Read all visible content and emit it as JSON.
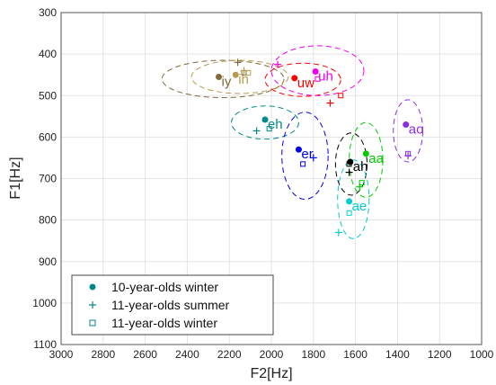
{
  "chart_data": {
    "type": "scatter",
    "xlabel": "F2[Hz]",
    "ylabel": "F1[Hz]",
    "xlim": [
      3000,
      1000
    ],
    "ylim": [
      1100,
      300
    ],
    "x_reversed": true,
    "y_reversed": true,
    "grid": true,
    "xticks": [
      "3000",
      "2800",
      "2600",
      "2400",
      "2200",
      "2000",
      "1800",
      "1600",
      "1400",
      "1200",
      "1000"
    ],
    "yticks": [
      "300",
      "400",
      "500",
      "600",
      "700",
      "800",
      "900",
      "1000",
      "1100"
    ],
    "legend": {
      "placement": "bottom-left",
      "entries": [
        {
          "marker": "circle",
          "label": "10-year-olds winter",
          "color": "#00868b"
        },
        {
          "marker": "plus",
          "label": "11-year-olds summer",
          "color": "#00868b"
        },
        {
          "marker": "square",
          "label": "11-year-olds winter",
          "color": "#00868b"
        }
      ]
    },
    "vowels": [
      {
        "label": "iy",
        "color": "#7f6a3a",
        "winter10": [
          2250,
          455
        ],
        "summer11": [
          2160,
          420
        ],
        "winter11": [
          2130,
          445
        ],
        "ellipse": {
          "cx": 2230,
          "cy": 460,
          "rx": 290,
          "ry": 45
        }
      },
      {
        "label": "ih",
        "color": "#b89a4e",
        "winter10": [
          2170,
          450
        ],
        "summer11": [
          2130,
          440
        ],
        "winter11": [
          2110,
          445
        ],
        "ellipse": {
          "cx": 2150,
          "cy": 455,
          "rx": 230,
          "ry": 40
        }
      },
      {
        "label": "uw",
        "color": "#ff0000",
        "winter10": [
          1890,
          458
        ],
        "summer11": [
          1720,
          518
        ],
        "winter11": [
          1670,
          500
        ],
        "ellipse": {
          "cx": 1850,
          "cy": 462,
          "rx": 180,
          "ry": 40
        }
      },
      {
        "label": "uh",
        "color": "#ee00ee",
        "winter10": [
          1790,
          442
        ],
        "summer11": [
          1970,
          425
        ],
        "winter11": [
          1780,
          460
        ],
        "ellipse": {
          "cx": 1780,
          "cy": 440,
          "rx": 220,
          "ry": 60
        }
      },
      {
        "label": "ah",
        "color": "#000000",
        "winter10": [
          1625,
          660
        ],
        "summer11": [
          1630,
          685
        ],
        "winter11": [
          1630,
          665
        ],
        "ellipse": {
          "cx": 1620,
          "cy": 665,
          "rx": 75,
          "ry": 75
        }
      },
      {
        "label": "eh",
        "color": "#008b8b",
        "winter10": [
          2030,
          558
        ],
        "summer11": [
          2070,
          585
        ],
        "winter11": [
          2010,
          580
        ],
        "ellipse": {
          "cx": 2030,
          "cy": 565,
          "rx": 160,
          "ry": 40
        }
      },
      {
        "label": "er",
        "color": "#0000ee",
        "winter10": [
          1870,
          630
        ],
        "summer11": [
          1800,
          650
        ],
        "winter11": [
          1850,
          665
        ],
        "ellipse": {
          "cx": 1840,
          "cy": 645,
          "rx": 110,
          "ry": 105
        }
      },
      {
        "label": "ao",
        "color": "#8b2be2",
        "winter10": [
          1360,
          570
        ],
        "summer11": [
          1350,
          645
        ],
        "winter11": [
          1350,
          640
        ],
        "ellipse": {
          "cx": 1350,
          "cy": 585,
          "rx": 70,
          "ry": 75
        }
      },
      {
        "label": "aa",
        "color": "#00cc00",
        "winter10": [
          1550,
          640
        ],
        "summer11": [
          1580,
          720
        ],
        "winter11": [
          1570,
          710
        ],
        "ellipse": {
          "cx": 1550,
          "cy": 655,
          "rx": 80,
          "ry": 90
        }
      },
      {
        "label": "ae",
        "color": "#00cccc",
        "winter10": [
          1630,
          755
        ],
        "summer11": [
          1680,
          830
        ],
        "winter11": [
          1630,
          783
        ],
        "ellipse": {
          "cx": 1610,
          "cy": 750,
          "rx": 75,
          "ry": 95
        }
      }
    ]
  }
}
